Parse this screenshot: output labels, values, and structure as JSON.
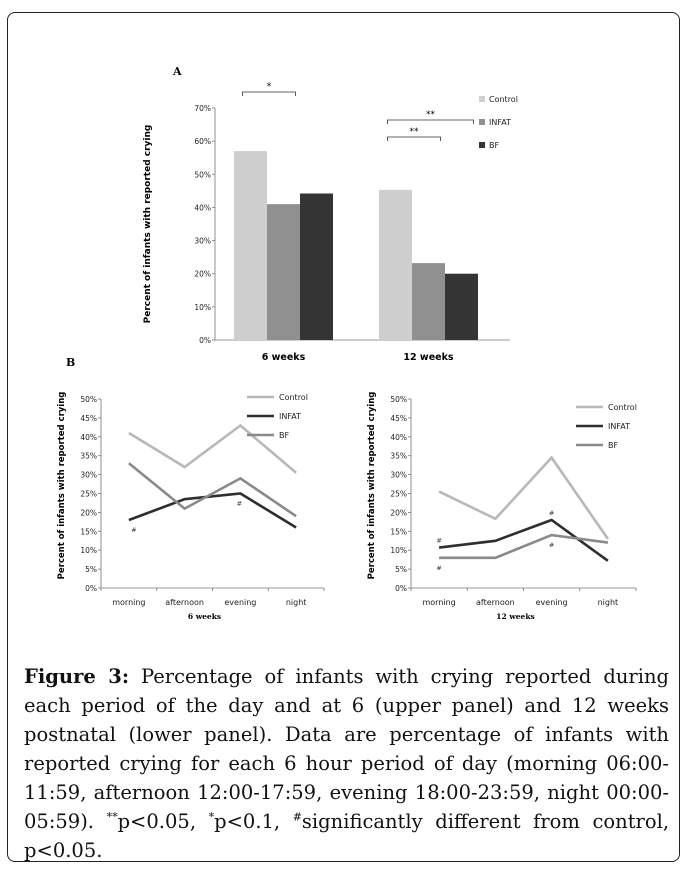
{
  "colors": {
    "Control": "#cfcfcf",
    "INFAT": "#909090",
    "BF": "#343434",
    "line_Control": "#b8b8b8",
    "line_INFAT": "#2e2e2e",
    "line_BF": "#8a8a8a"
  },
  "chart_data": [
    {
      "type": "bar",
      "panel": "A",
      "ylabel": "Percent of infants with reported crying",
      "ylim": [
        0,
        70
      ],
      "yticks": [
        "0%",
        "10%",
        "20%",
        "30%",
        "40%",
        "50%",
        "60%",
        "70%"
      ],
      "categories": [
        "6 weeks",
        "12 weeks"
      ],
      "series": [
        {
          "name": "Control",
          "values": [
            57,
            45.3
          ]
        },
        {
          "name": "INFAT",
          "values": [
            41,
            23.2
          ]
        },
        {
          "name": "BF",
          "values": [
            44.2,
            20
          ]
        }
      ],
      "legend": "right",
      "annotations": [
        {
          "text": "*",
          "group": "6 weeks",
          "from": "Control",
          "to": "INFAT"
        },
        {
          "text": "**",
          "group": "12 weeks",
          "from": "Control",
          "to": "INFAT"
        },
        {
          "text": "**",
          "group": "12 weeks",
          "from": "Control",
          "to": "BF"
        }
      ]
    },
    {
      "type": "line",
      "panel": "B",
      "title": "6 weeks",
      "ylabel": "Percent of infants with reported crying",
      "ylim": [
        0,
        50
      ],
      "yticks": [
        "0%",
        "5%",
        "10%",
        "15%",
        "20%",
        "25%",
        "30%",
        "35%",
        "40%",
        "45%",
        "50%"
      ],
      "categories": [
        "morning",
        "afternoon",
        "evening",
        "night"
      ],
      "series": [
        {
          "name": "Control",
          "values": [
            41,
            32,
            43,
            30.5
          ]
        },
        {
          "name": "INFAT",
          "values": [
            18,
            23.5,
            25,
            16
          ]
        },
        {
          "name": "BF",
          "values": [
            33,
            21,
            29,
            19
          ]
        }
      ],
      "legend": "top-right",
      "annotations": [
        {
          "text": "#",
          "category": "morning",
          "series": "INFAT"
        },
        {
          "text": "#",
          "category": "evening",
          "series": "INFAT"
        }
      ]
    },
    {
      "type": "line",
      "title": "12 weeks",
      "ylabel": "Percent of infants with reported crying",
      "ylim": [
        0,
        50
      ],
      "yticks": [
        "0%",
        "5%",
        "10%",
        "15%",
        "20%",
        "25%",
        "30%",
        "35%",
        "40%",
        "45%",
        "50%"
      ],
      "categories": [
        "morning",
        "afternoon",
        "evening",
        "night"
      ],
      "series": [
        {
          "name": "Control",
          "values": [
            25.5,
            18.3,
            34.5,
            13
          ]
        },
        {
          "name": "INFAT",
          "values": [
            10.7,
            12.5,
            18,
            7.2
          ]
        },
        {
          "name": "BF",
          "values": [
            8,
            8,
            14,
            12
          ]
        }
      ],
      "legend": "top-right",
      "annotations": [
        {
          "text": "#",
          "category": "morning",
          "series": "INFAT"
        },
        {
          "text": "#",
          "category": "morning",
          "series": "BF"
        },
        {
          "text": "#",
          "category": "evening",
          "series": "INFAT"
        },
        {
          "text": "#",
          "category": "evening",
          "series": "BF"
        }
      ]
    }
  ],
  "caption": {
    "label": "Figure 3:",
    "part1": " Percentage of infants with crying reported during each period of the day and at 6 (upper panel) and 12 weeks postnatal (lower panel). Data are percentage of infants with reported crying for each 6 hour period of day (morning 06:00-11:59, afternoon 12:00-17:59, evening 18:00-23:59, night 00:00-05:59). ",
    "sup1": "**",
    "part2": "p<0.05, ",
    "sup2": "*",
    "part3": "p<0.1, ",
    "sup3": "#",
    "part4": "significantly different from control, p<0.05."
  }
}
